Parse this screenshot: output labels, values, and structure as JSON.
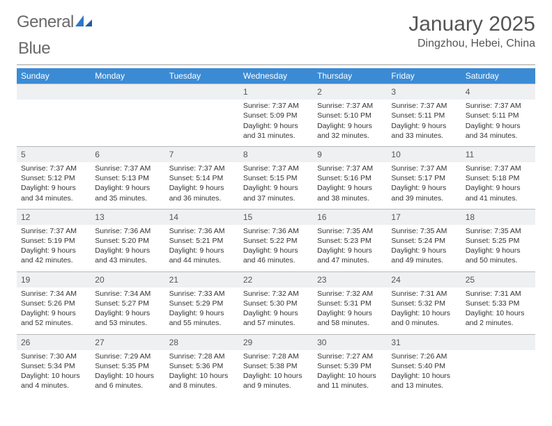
{
  "brand": {
    "name_a": "General",
    "name_b": "Blue"
  },
  "header": {
    "title": "January 2025",
    "location": "Dingzhou, Hebei, China"
  },
  "colors": {
    "header_bg": "#3b8bd4",
    "header_text": "#ffffff",
    "daynum_bg": "#eef0f2",
    "rule": "#c9c9c9",
    "text": "#333333"
  },
  "weekdays": [
    "Sunday",
    "Monday",
    "Tuesday",
    "Wednesday",
    "Thursday",
    "Friday",
    "Saturday"
  ],
  "weeks": [
    {
      "nums": [
        "",
        "",
        "",
        "1",
        "2",
        "3",
        "4"
      ],
      "details": [
        [],
        [],
        [],
        [
          "Sunrise: 7:37 AM",
          "Sunset: 5:09 PM",
          "Daylight: 9 hours and 31 minutes."
        ],
        [
          "Sunrise: 7:37 AM",
          "Sunset: 5:10 PM",
          "Daylight: 9 hours and 32 minutes."
        ],
        [
          "Sunrise: 7:37 AM",
          "Sunset: 5:11 PM",
          "Daylight: 9 hours and 33 minutes."
        ],
        [
          "Sunrise: 7:37 AM",
          "Sunset: 5:11 PM",
          "Daylight: 9 hours and 34 minutes."
        ]
      ]
    },
    {
      "nums": [
        "5",
        "6",
        "7",
        "8",
        "9",
        "10",
        "11"
      ],
      "details": [
        [
          "Sunrise: 7:37 AM",
          "Sunset: 5:12 PM",
          "Daylight: 9 hours and 34 minutes."
        ],
        [
          "Sunrise: 7:37 AM",
          "Sunset: 5:13 PM",
          "Daylight: 9 hours and 35 minutes."
        ],
        [
          "Sunrise: 7:37 AM",
          "Sunset: 5:14 PM",
          "Daylight: 9 hours and 36 minutes."
        ],
        [
          "Sunrise: 7:37 AM",
          "Sunset: 5:15 PM",
          "Daylight: 9 hours and 37 minutes."
        ],
        [
          "Sunrise: 7:37 AM",
          "Sunset: 5:16 PM",
          "Daylight: 9 hours and 38 minutes."
        ],
        [
          "Sunrise: 7:37 AM",
          "Sunset: 5:17 PM",
          "Daylight: 9 hours and 39 minutes."
        ],
        [
          "Sunrise: 7:37 AM",
          "Sunset: 5:18 PM",
          "Daylight: 9 hours and 41 minutes."
        ]
      ]
    },
    {
      "nums": [
        "12",
        "13",
        "14",
        "15",
        "16",
        "17",
        "18"
      ],
      "details": [
        [
          "Sunrise: 7:37 AM",
          "Sunset: 5:19 PM",
          "Daylight: 9 hours and 42 minutes."
        ],
        [
          "Sunrise: 7:36 AM",
          "Sunset: 5:20 PM",
          "Daylight: 9 hours and 43 minutes."
        ],
        [
          "Sunrise: 7:36 AM",
          "Sunset: 5:21 PM",
          "Daylight: 9 hours and 44 minutes."
        ],
        [
          "Sunrise: 7:36 AM",
          "Sunset: 5:22 PM",
          "Daylight: 9 hours and 46 minutes."
        ],
        [
          "Sunrise: 7:35 AM",
          "Sunset: 5:23 PM",
          "Daylight: 9 hours and 47 minutes."
        ],
        [
          "Sunrise: 7:35 AM",
          "Sunset: 5:24 PM",
          "Daylight: 9 hours and 49 minutes."
        ],
        [
          "Sunrise: 7:35 AM",
          "Sunset: 5:25 PM",
          "Daylight: 9 hours and 50 minutes."
        ]
      ]
    },
    {
      "nums": [
        "19",
        "20",
        "21",
        "22",
        "23",
        "24",
        "25"
      ],
      "details": [
        [
          "Sunrise: 7:34 AM",
          "Sunset: 5:26 PM",
          "Daylight: 9 hours and 52 minutes."
        ],
        [
          "Sunrise: 7:34 AM",
          "Sunset: 5:27 PM",
          "Daylight: 9 hours and 53 minutes."
        ],
        [
          "Sunrise: 7:33 AM",
          "Sunset: 5:29 PM",
          "Daylight: 9 hours and 55 minutes."
        ],
        [
          "Sunrise: 7:32 AM",
          "Sunset: 5:30 PM",
          "Daylight: 9 hours and 57 minutes."
        ],
        [
          "Sunrise: 7:32 AM",
          "Sunset: 5:31 PM",
          "Daylight: 9 hours and 58 minutes."
        ],
        [
          "Sunrise: 7:31 AM",
          "Sunset: 5:32 PM",
          "Daylight: 10 hours and 0 minutes."
        ],
        [
          "Sunrise: 7:31 AM",
          "Sunset: 5:33 PM",
          "Daylight: 10 hours and 2 minutes."
        ]
      ]
    },
    {
      "nums": [
        "26",
        "27",
        "28",
        "29",
        "30",
        "31",
        ""
      ],
      "details": [
        [
          "Sunrise: 7:30 AM",
          "Sunset: 5:34 PM",
          "Daylight: 10 hours and 4 minutes."
        ],
        [
          "Sunrise: 7:29 AM",
          "Sunset: 5:35 PM",
          "Daylight: 10 hours and 6 minutes."
        ],
        [
          "Sunrise: 7:28 AM",
          "Sunset: 5:36 PM",
          "Daylight: 10 hours and 8 minutes."
        ],
        [
          "Sunrise: 7:28 AM",
          "Sunset: 5:38 PM",
          "Daylight: 10 hours and 9 minutes."
        ],
        [
          "Sunrise: 7:27 AM",
          "Sunset: 5:39 PM",
          "Daylight: 10 hours and 11 minutes."
        ],
        [
          "Sunrise: 7:26 AM",
          "Sunset: 5:40 PM",
          "Daylight: 10 hours and 13 minutes."
        ],
        []
      ]
    }
  ]
}
